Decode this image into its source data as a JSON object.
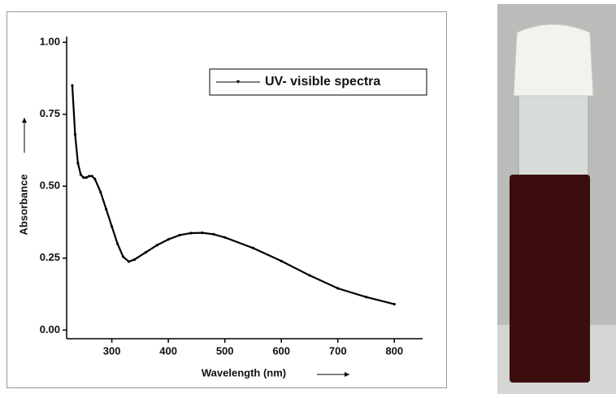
{
  "chart_data": {
    "type": "line",
    "x_label": "Wavelength (nm)",
    "y_label": "Absorbance",
    "x": [
      230,
      235,
      240,
      245,
      250,
      255,
      260,
      265,
      270,
      280,
      290,
      300,
      310,
      320,
      330,
      340,
      360,
      380,
      400,
      420,
      440,
      460,
      480,
      500,
      550,
      600,
      650,
      700,
      750,
      800
    ],
    "series": [
      {
        "name": "UV- visible spectra",
        "color": "#000000",
        "values": [
          0.85,
          0.68,
          0.58,
          0.54,
          0.53,
          0.53,
          0.535,
          0.535,
          0.525,
          0.48,
          0.42,
          0.36,
          0.3,
          0.255,
          0.238,
          0.245,
          0.27,
          0.295,
          0.315,
          0.33,
          0.337,
          0.338,
          0.333,
          0.322,
          0.285,
          0.24,
          0.19,
          0.145,
          0.115,
          0.09
        ]
      }
    ],
    "xlim": [
      220,
      850
    ],
    "ylim": [
      -0.03,
      1.02
    ],
    "xticks": [
      300,
      400,
      500,
      600,
      700,
      800
    ],
    "yticks": [
      {
        "value": 0,
        "label": "0.00"
      },
      {
        "value": 0.25,
        "label": "0.25"
      },
      {
        "value": 0.5,
        "label": "0.50"
      },
      {
        "value": 0.75,
        "label": "0.75"
      },
      {
        "value": 1,
        "label": "1.00"
      }
    ],
    "legend": "upper right"
  }
}
